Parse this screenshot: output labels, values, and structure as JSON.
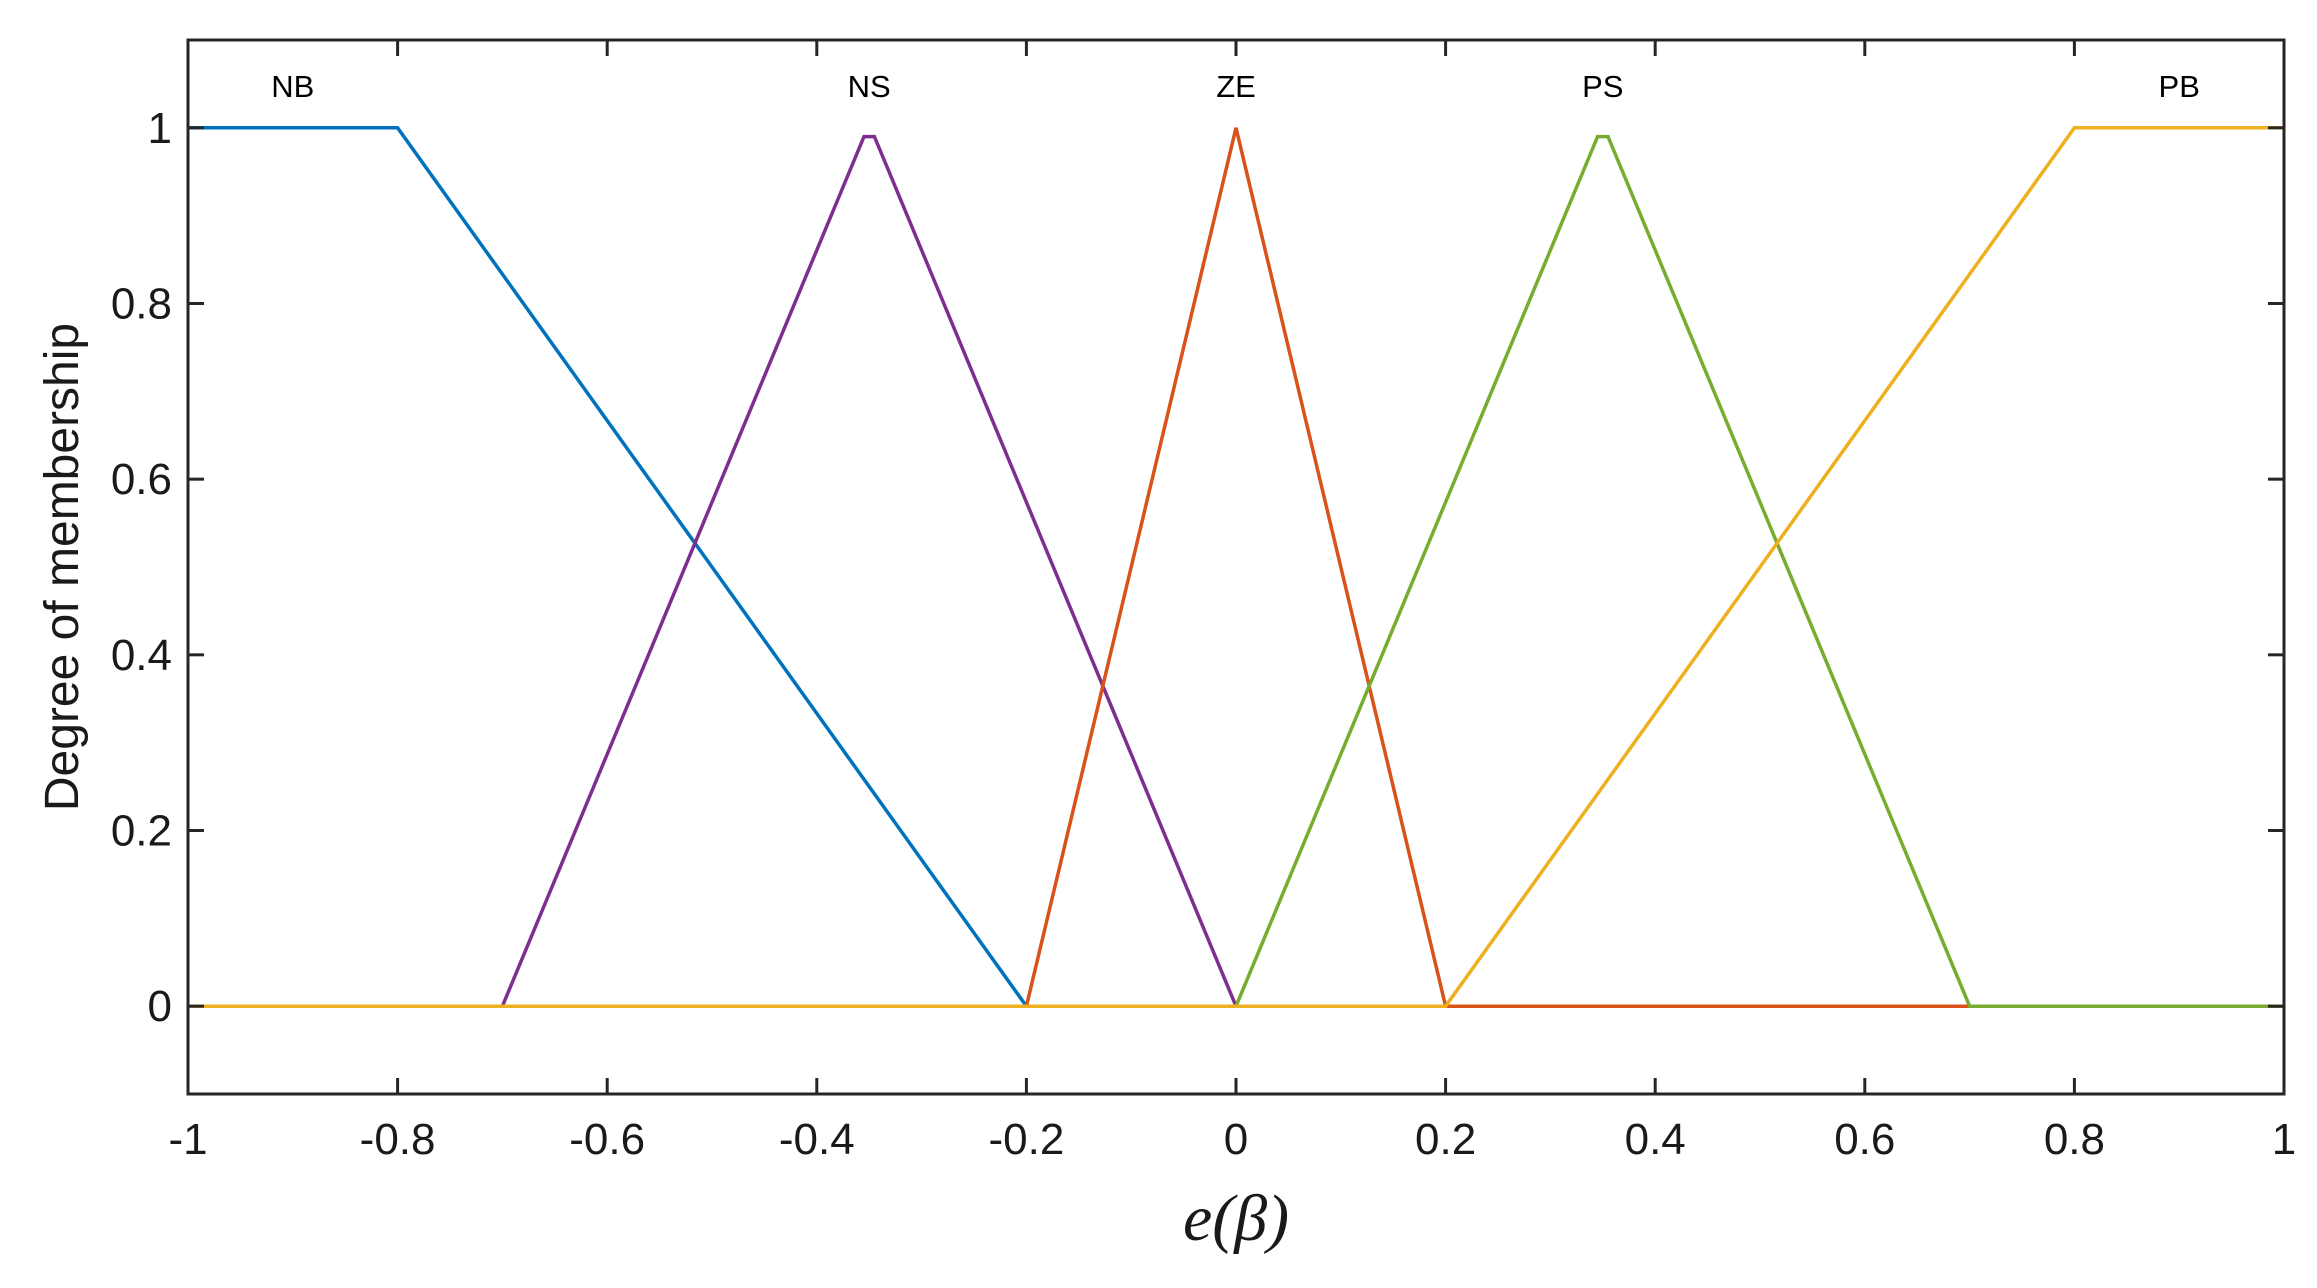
{
  "chart_data": {
    "type": "line",
    "title": "",
    "xlabel": "e(β)",
    "ylabel": "Degree of membership",
    "xlim": [
      -1,
      1
    ],
    "ylim": [
      -0.1,
      1.1
    ],
    "xticks": [
      -1,
      -0.8,
      -0.6,
      -0.4,
      -0.2,
      0,
      0.2,
      0.4,
      0.6,
      0.8,
      1
    ],
    "xtick_labels": [
      "-1",
      "-0.8",
      "-0.6",
      "-0.4",
      "-0.2",
      "0",
      "0.2",
      "0.4",
      "0.6",
      "0.8",
      "1"
    ],
    "yticks": [
      0,
      0.2,
      0.4,
      0.6,
      0.8,
      1
    ],
    "ytick_labels": [
      "0",
      "0.2",
      "0.4",
      "0.6",
      "0.8",
      "1"
    ],
    "grid": false,
    "series": [
      {
        "name": "NB",
        "color": "#0072BD",
        "label_x": -0.9,
        "points": [
          [
            -1,
            1
          ],
          [
            -0.8,
            1
          ],
          [
            -0.2,
            0
          ],
          [
            1,
            0
          ]
        ]
      },
      {
        "name": "NS",
        "color": "#7E2F8E",
        "label_x": -0.35,
        "points": [
          [
            -1,
            0
          ],
          [
            -0.7,
            0
          ],
          [
            -0.355,
            0.99
          ],
          [
            -0.345,
            0.99
          ],
          [
            0,
            0
          ],
          [
            1,
            0
          ]
        ]
      },
      {
        "name": "ZE",
        "color": "#D95319",
        "label_x": 0,
        "points": [
          [
            -1,
            0
          ],
          [
            -0.2,
            0
          ],
          [
            0,
            1
          ],
          [
            0.2,
            0
          ],
          [
            1,
            0
          ]
        ]
      },
      {
        "name": "PS",
        "color": "#77AC30",
        "label_x": 0.35,
        "points": [
          [
            -1,
            0
          ],
          [
            0,
            0
          ],
          [
            0.345,
            0.99
          ],
          [
            0.355,
            0.99
          ],
          [
            0.7,
            0
          ],
          [
            1,
            0
          ]
        ]
      },
      {
        "name": "PB",
        "color": "#EDB120",
        "label_x": 0.9,
        "points": [
          [
            -1,
            0
          ],
          [
            0.2,
            0
          ],
          [
            0.8,
            1
          ],
          [
            1,
            1
          ]
        ]
      }
    ]
  }
}
